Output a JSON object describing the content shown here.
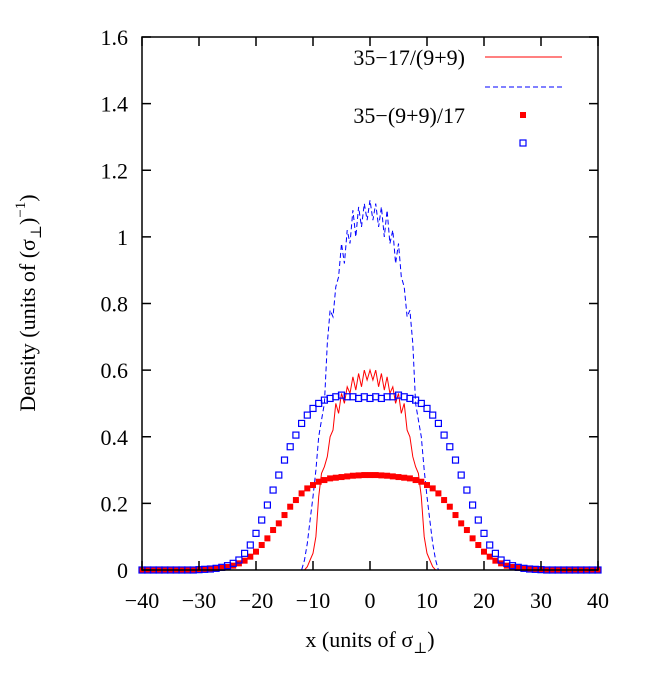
{
  "chart_data": {
    "type": "line",
    "xlabel": "x (units of σ⊥)",
    "xlabel_parts": {
      "main": "x (units of σ",
      "sub": "⊥",
      "close": ")"
    },
    "ylabel": "Density (units of (σ⊥)−1)",
    "ylabel_parts": {
      "main": "Density (units of (σ",
      "sub": "⊥",
      "mid": ")",
      "sup": "−1",
      "close": ")"
    },
    "xlim": [
      -40,
      40
    ],
    "ylim": [
      0,
      1.6
    ],
    "xticks": [
      -40,
      -30,
      -20,
      -10,
      0,
      10,
      20,
      30,
      40
    ],
    "xtick_labels": [
      "−40",
      "−30",
      "−20",
      "−10",
      "0",
      "10",
      "20",
      "30",
      "40"
    ],
    "yticks": [
      0,
      0.2,
      0.4,
      0.6,
      0.8,
      1.0,
      1.2,
      1.4,
      1.6
    ],
    "ytick_labels": [
      "0",
      "0.2",
      "0.4",
      "0.6",
      "0.8",
      "1",
      "1.2",
      "1.4",
      "1.6"
    ],
    "grid": false,
    "legend_position": "top-right",
    "series": [
      {
        "name": "35−17/(9+9)",
        "style": "solid-line",
        "color": "#ff0000",
        "x": [
          -40,
          -13,
          -12.5,
          -12,
          -11.5,
          -11,
          -10.5,
          -10,
          -9.5,
          -9,
          -8.5,
          -8,
          -7.5,
          -7,
          -6.5,
          -6,
          -5.5,
          -5,
          -4.5,
          -4,
          -3.5,
          -3,
          -2.5,
          -2,
          -1.5,
          -1,
          -0.5,
          0,
          0.5,
          1,
          1.5,
          2,
          2.5,
          3,
          3.5,
          4,
          4.5,
          5,
          5.5,
          6,
          6.5,
          7,
          7.5,
          8,
          8.5,
          9,
          9.5,
          10,
          10.5,
          11,
          11.5,
          12,
          12.5,
          13,
          40
        ],
        "y": [
          0,
          0,
          0,
          0,
          0,
          0.01,
          0.03,
          0.05,
          0.1,
          0.22,
          0.29,
          0.31,
          0.34,
          0.4,
          0.42,
          0.5,
          0.47,
          0.53,
          0.5,
          0.55,
          0.53,
          0.58,
          0.54,
          0.59,
          0.55,
          0.6,
          0.57,
          0.6,
          0.57,
          0.6,
          0.55,
          0.59,
          0.54,
          0.58,
          0.53,
          0.55,
          0.5,
          0.53,
          0.47,
          0.5,
          0.42,
          0.4,
          0.34,
          0.31,
          0.29,
          0.22,
          0.1,
          0.05,
          0.03,
          0.01,
          0,
          0,
          0,
          0,
          0
        ]
      },
      {
        "name": "",
        "style": "dashed-line",
        "color": "#0000ff",
        "x": [
          -40,
          -13,
          -12.5,
          -12,
          -11.5,
          -11,
          -10.5,
          -10,
          -9.5,
          -9,
          -8.5,
          -8,
          -7.5,
          -7,
          -6.5,
          -6,
          -5.5,
          -5,
          -4.5,
          -4,
          -3.5,
          -3,
          -2.5,
          -2,
          -1.5,
          -1,
          -0.5,
          0,
          0.5,
          1,
          1.5,
          2,
          2.5,
          3,
          3.5,
          4,
          4.5,
          5,
          5.5,
          6,
          6.5,
          7,
          7.5,
          8,
          8.5,
          9,
          9.5,
          10,
          10.5,
          11,
          11.5,
          12,
          12.5,
          13,
          40
        ],
        "y": [
          0,
          0,
          0,
          0,
          0.03,
          0.08,
          0.15,
          0.22,
          0.3,
          0.4,
          0.45,
          0.5,
          0.68,
          0.78,
          0.76,
          0.85,
          0.88,
          0.98,
          0.92,
          1.02,
          0.98,
          1.08,
          1.0,
          1.09,
          1.03,
          1.1,
          1.05,
          1.11,
          1.05,
          1.1,
          1.03,
          1.09,
          1.0,
          1.08,
          0.98,
          1.02,
          0.92,
          0.98,
          0.88,
          0.85,
          0.76,
          0.78,
          0.68,
          0.5,
          0.45,
          0.4,
          0.3,
          0.22,
          0.15,
          0.08,
          0.03,
          0,
          0,
          0,
          0
        ]
      },
      {
        "name": "35−(9+9)/17",
        "style": "filled-square",
        "color": "#ff0000",
        "x": [
          -40,
          -39,
          -38,
          -37,
          -36,
          -35,
          -34,
          -33,
          -32,
          -31,
          -30,
          -29,
          -28,
          -27,
          -26,
          -25,
          -24,
          -23,
          -22,
          -21,
          -20,
          -19,
          -18,
          -17,
          -16,
          -15,
          -14,
          -13,
          -12,
          -11,
          -10,
          -9,
          -8,
          -7,
          -6,
          -5,
          -4,
          -3,
          -2,
          -1,
          0,
          1,
          2,
          3,
          4,
          5,
          6,
          7,
          8,
          9,
          10,
          11,
          12,
          13,
          14,
          15,
          16,
          17,
          18,
          19,
          20,
          21,
          22,
          23,
          24,
          25,
          26,
          27,
          28,
          29,
          30,
          31,
          32,
          33,
          34,
          35,
          36,
          37,
          38,
          39,
          40
        ],
        "y": [
          0,
          0,
          0,
          0,
          0,
          0,
          0,
          0,
          0,
          0,
          0.001,
          0.002,
          0.003,
          0.004,
          0.006,
          0.009,
          0.013,
          0.02,
          0.028,
          0.04,
          0.055,
          0.075,
          0.095,
          0.12,
          0.14,
          0.165,
          0.19,
          0.21,
          0.23,
          0.245,
          0.255,
          0.265,
          0.27,
          0.275,
          0.277,
          0.279,
          0.281,
          0.283,
          0.284,
          0.285,
          0.285,
          0.285,
          0.284,
          0.283,
          0.281,
          0.279,
          0.277,
          0.275,
          0.27,
          0.265,
          0.255,
          0.245,
          0.23,
          0.21,
          0.19,
          0.165,
          0.14,
          0.12,
          0.095,
          0.075,
          0.055,
          0.04,
          0.028,
          0.02,
          0.013,
          0.009,
          0.006,
          0.004,
          0.003,
          0.002,
          0.001,
          0,
          0,
          0,
          0,
          0,
          0,
          0,
          0,
          0,
          0
        ]
      },
      {
        "name": "",
        "style": "open-square",
        "color": "#0000ff",
        "x": [
          -40,
          -39,
          -38,
          -37,
          -36,
          -35,
          -34,
          -33,
          -32,
          -31,
          -30,
          -29,
          -28,
          -27,
          -26,
          -25,
          -24,
          -23,
          -22,
          -21,
          -20,
          -19,
          -18,
          -17,
          -16,
          -15,
          -14,
          -13,
          -12,
          -11,
          -10,
          -9,
          -8,
          -7,
          -6,
          -5,
          -4,
          -3,
          -2,
          -1,
          0,
          1,
          2,
          3,
          4,
          5,
          6,
          7,
          8,
          9,
          10,
          11,
          12,
          13,
          14,
          15,
          16,
          17,
          18,
          19,
          20,
          21,
          22,
          23,
          24,
          25,
          26,
          27,
          28,
          29,
          30,
          31,
          32,
          33,
          34,
          35,
          36,
          37,
          38,
          39,
          40
        ],
        "y": [
          0,
          0,
          0,
          0,
          0,
          0,
          0,
          0,
          0,
          0,
          0.001,
          0.002,
          0.003,
          0.005,
          0.008,
          0.013,
          0.02,
          0.03,
          0.05,
          0.075,
          0.11,
          0.15,
          0.195,
          0.24,
          0.285,
          0.33,
          0.37,
          0.405,
          0.44,
          0.465,
          0.485,
          0.5,
          0.51,
          0.515,
          0.52,
          0.525,
          0.52,
          0.52,
          0.515,
          0.52,
          0.515,
          0.52,
          0.515,
          0.52,
          0.52,
          0.525,
          0.52,
          0.515,
          0.51,
          0.5,
          0.485,
          0.465,
          0.44,
          0.405,
          0.37,
          0.33,
          0.285,
          0.24,
          0.195,
          0.15,
          0.11,
          0.075,
          0.05,
          0.03,
          0.02,
          0.013,
          0.008,
          0.005,
          0.003,
          0.002,
          0.001,
          0,
          0,
          0,
          0,
          0,
          0,
          0,
          0,
          0,
          0
        ]
      }
    ]
  }
}
